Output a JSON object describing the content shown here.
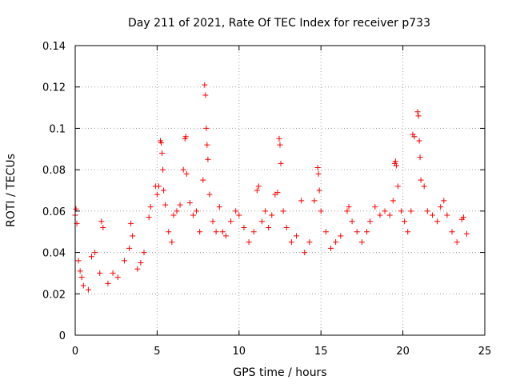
{
  "chart_data": {
    "type": "scatter",
    "title": "Day 211 of 2021, Rate Of TEC Index for receiver p733",
    "xlabel": "GPS time / hours",
    "ylabel": "ROTI / TECUs",
    "xlim": [
      0,
      25
    ],
    "ylim": [
      0,
      0.14
    ],
    "x_ticks": [
      0,
      5,
      10,
      15,
      20,
      25
    ],
    "x_tick_labels": [
      "0",
      "5",
      "10",
      "15",
      "20",
      "25"
    ],
    "y_ticks": [
      0,
      0.02,
      0.04,
      0.06,
      0.08,
      0.1,
      0.12,
      0.14
    ],
    "y_tick_labels": [
      "0",
      "0.02",
      "0.04",
      "0.06",
      "0.08",
      "0.1",
      "0.12",
      "0.14"
    ],
    "grid": true,
    "marker": "plus",
    "color": "#ff0000",
    "series": [
      {
        "points": [
          [
            0.0,
            0.058
          ],
          [
            0.05,
            0.061
          ],
          [
            0.1,
            0.054
          ],
          [
            0.2,
            0.036
          ],
          [
            0.3,
            0.031
          ],
          [
            0.4,
            0.028
          ],
          [
            0.5,
            0.024
          ],
          [
            0.8,
            0.022
          ],
          [
            1.0,
            0.038
          ],
          [
            1.2,
            0.04
          ],
          [
            1.5,
            0.03
          ],
          [
            1.6,
            0.055
          ],
          [
            1.7,
            0.052
          ],
          [
            2.0,
            0.025
          ],
          [
            2.3,
            0.03
          ],
          [
            2.6,
            0.028
          ],
          [
            3.0,
            0.036
          ],
          [
            3.3,
            0.042
          ],
          [
            3.4,
            0.054
          ],
          [
            3.5,
            0.048
          ],
          [
            3.8,
            0.032
          ],
          [
            4.0,
            0.035
          ],
          [
            4.2,
            0.04
          ],
          [
            4.5,
            0.057
          ],
          [
            4.6,
            0.062
          ],
          [
            4.9,
            0.072
          ],
          [
            5.0,
            0.068
          ],
          [
            5.1,
            0.072
          ],
          [
            5.2,
            0.094
          ],
          [
            5.25,
            0.093
          ],
          [
            5.3,
            0.088
          ],
          [
            5.35,
            0.08
          ],
          [
            5.4,
            0.07
          ],
          [
            5.5,
            0.063
          ],
          [
            5.7,
            0.05
          ],
          [
            5.9,
            0.045
          ],
          [
            6.0,
            0.058
          ],
          [
            6.2,
            0.06
          ],
          [
            6.4,
            0.063
          ],
          [
            6.6,
            0.08
          ],
          [
            6.7,
            0.095
          ],
          [
            6.75,
            0.096
          ],
          [
            6.8,
            0.078
          ],
          [
            7.0,
            0.064
          ],
          [
            7.2,
            0.058
          ],
          [
            7.4,
            0.06
          ],
          [
            7.6,
            0.05
          ],
          [
            7.8,
            0.075
          ],
          [
            7.9,
            0.121
          ],
          [
            7.95,
            0.116
          ],
          [
            8.0,
            0.1
          ],
          [
            8.05,
            0.092
          ],
          [
            8.1,
            0.085
          ],
          [
            8.2,
            0.068
          ],
          [
            8.4,
            0.055
          ],
          [
            8.6,
            0.05
          ],
          [
            8.8,
            0.062
          ],
          [
            9.0,
            0.05
          ],
          [
            9.2,
            0.048
          ],
          [
            9.5,
            0.055
          ],
          [
            9.8,
            0.06
          ],
          [
            10.0,
            0.058
          ],
          [
            10.3,
            0.052
          ],
          [
            10.6,
            0.045
          ],
          [
            10.9,
            0.05
          ],
          [
            11.1,
            0.07
          ],
          [
            11.2,
            0.072
          ],
          [
            11.4,
            0.055
          ],
          [
            11.6,
            0.06
          ],
          [
            11.8,
            0.052
          ],
          [
            12.0,
            0.058
          ],
          [
            12.2,
            0.068
          ],
          [
            12.35,
            0.069
          ],
          [
            12.45,
            0.095
          ],
          [
            12.5,
            0.092
          ],
          [
            12.55,
            0.083
          ],
          [
            12.7,
            0.06
          ],
          [
            12.9,
            0.052
          ],
          [
            13.2,
            0.045
          ],
          [
            13.5,
            0.048
          ],
          [
            13.8,
            0.065
          ],
          [
            14.0,
            0.04
          ],
          [
            14.3,
            0.045
          ],
          [
            14.6,
            0.065
          ],
          [
            14.8,
            0.081
          ],
          [
            14.85,
            0.078
          ],
          [
            14.9,
            0.07
          ],
          [
            15.0,
            0.06
          ],
          [
            15.3,
            0.05
          ],
          [
            15.6,
            0.042
          ],
          [
            15.9,
            0.045
          ],
          [
            16.2,
            0.048
          ],
          [
            16.6,
            0.06
          ],
          [
            16.7,
            0.062
          ],
          [
            16.9,
            0.055
          ],
          [
            17.2,
            0.05
          ],
          [
            17.5,
            0.045
          ],
          [
            17.8,
            0.05
          ],
          [
            18.0,
            0.055
          ],
          [
            18.3,
            0.062
          ],
          [
            18.6,
            0.058
          ],
          [
            18.9,
            0.06
          ],
          [
            19.2,
            0.058
          ],
          [
            19.4,
            0.065
          ],
          [
            19.5,
            0.083
          ],
          [
            19.55,
            0.084
          ],
          [
            19.6,
            0.082
          ],
          [
            19.7,
            0.072
          ],
          [
            19.9,
            0.06
          ],
          [
            20.1,
            0.055
          ],
          [
            20.3,
            0.05
          ],
          [
            20.5,
            0.06
          ],
          [
            20.6,
            0.097
          ],
          [
            20.7,
            0.096
          ],
          [
            20.9,
            0.108
          ],
          [
            20.95,
            0.106
          ],
          [
            21.0,
            0.094
          ],
          [
            21.05,
            0.086
          ],
          [
            21.1,
            0.075
          ],
          [
            21.3,
            0.072
          ],
          [
            21.5,
            0.06
          ],
          [
            21.8,
            0.058
          ],
          [
            22.1,
            0.055
          ],
          [
            22.3,
            0.062
          ],
          [
            22.5,
            0.065
          ],
          [
            22.7,
            0.058
          ],
          [
            23.0,
            0.05
          ],
          [
            23.3,
            0.045
          ],
          [
            23.6,
            0.056
          ],
          [
            23.7,
            0.057
          ],
          [
            23.9,
            0.049
          ]
        ]
      }
    ]
  }
}
